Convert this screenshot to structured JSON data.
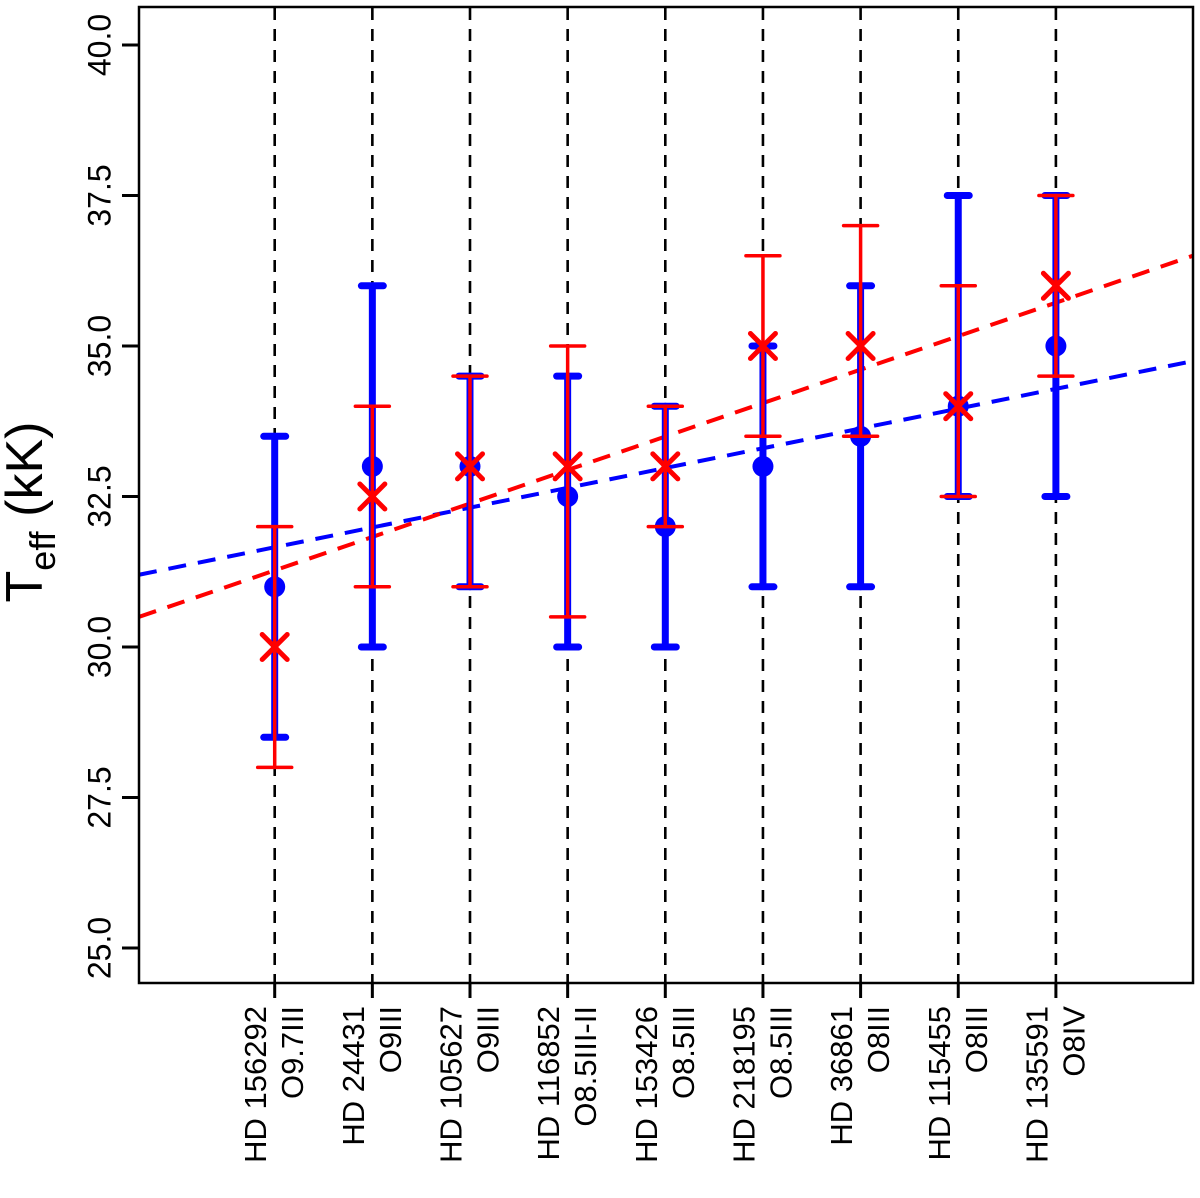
{
  "figure": {
    "background": "#ffffff",
    "axis_color": "#000000"
  },
  "y_axis": {
    "title": {
      "base": "T",
      "subscript": "eff",
      "unit": " (kK)"
    },
    "ticks": [
      {
        "label": "25.0",
        "value": 25.0
      },
      {
        "label": "27.5",
        "value": 27.5
      },
      {
        "label": "30.0",
        "value": 30.0
      },
      {
        "label": "32.5",
        "value": 32.5
      },
      {
        "label": "35.0",
        "value": 35.0
      },
      {
        "label": "37.5",
        "value": 37.5
      },
      {
        "label": "40.0",
        "value": 40.0
      }
    ]
  },
  "chart_data": {
    "type": "scatter-errorbar",
    "title": "",
    "xlabel": "",
    "ylabel": "Teff (kK)",
    "ylim": [
      24.4,
      40.63
    ],
    "y_ticks": [
      25.0,
      27.5,
      30.0,
      32.5,
      35.0,
      37.5,
      40.0
    ],
    "grid": "vertical-dashed-guides-per-category",
    "legend_position": "none",
    "categories": [
      "HD 156292",
      "HD 24431",
      "HD 105627",
      "HD 116852",
      "HD 153426",
      "HD 218195",
      "HD 36861",
      "HD 115455",
      "HD 135591"
    ],
    "spectral_types": [
      "O9.7III",
      "O9III",
      "O9III",
      "O8.5III-II",
      "O8.5III",
      "O8.5III",
      "O8III",
      "O8III",
      "O8IV"
    ],
    "series": [
      {
        "name": "blue-circle-series",
        "marker": "circle",
        "color": "#0000ff",
        "values": [
          31.0,
          33.0,
          33.0,
          32.5,
          32.0,
          33.0,
          33.5,
          34.0,
          35.0
        ],
        "err_lo": [
          28.5,
          30.0,
          31.0,
          30.0,
          30.0,
          31.0,
          31.0,
          32.5,
          32.5
        ],
        "err_hi": [
          33.5,
          36.0,
          34.5,
          34.5,
          34.0,
          35.0,
          36.0,
          37.5,
          37.5
        ]
      },
      {
        "name": "red-x-series",
        "marker": "x",
        "color": "#ff0000",
        "values": [
          30.0,
          32.5,
          33.0,
          33.0,
          33.0,
          35.0,
          35.0,
          34.0,
          36.0
        ],
        "err_lo": [
          28.0,
          31.0,
          31.0,
          30.5,
          32.0,
          33.5,
          33.5,
          32.5,
          34.5
        ],
        "err_hi": [
          32.0,
          34.0,
          34.5,
          35.0,
          34.0,
          36.5,
          37.0,
          36.0,
          37.5
        ]
      }
    ],
    "trend_lines": [
      {
        "name": "blue-fit-line",
        "color": "#0000ff",
        "start_value": 31.2,
        "end_value": 34.75
      },
      {
        "name": "red-fit-line",
        "color": "#ff0000",
        "start_value": 30.5,
        "end_value": 36.5
      }
    ]
  }
}
